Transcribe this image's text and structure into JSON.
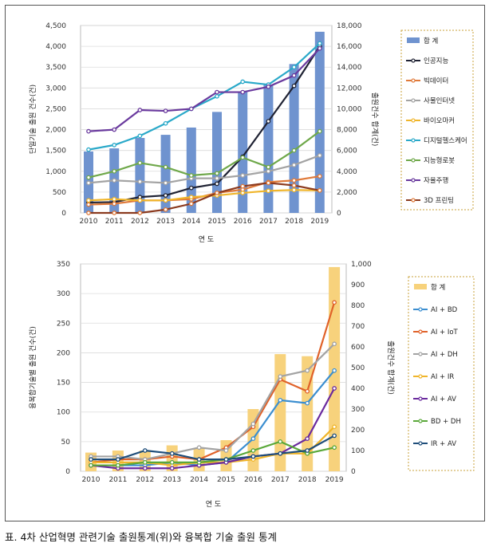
{
  "caption": "표. 4차 산업혁명 관련기술 출원통계(위)와 융복합 기술 출원 통계",
  "chart_data": [
    {
      "type": "bar",
      "categories": [
        "2010",
        "2011",
        "2012",
        "2013",
        "2014",
        "2015",
        "2016",
        "2017",
        "2018",
        "2019"
      ],
      "xlabel": "연 도",
      "ylabel": "단일기술 출원 건수(건)",
      "y2label": "출원건수 합계(건)",
      "ylim": [
        0,
        4500
      ],
      "y2lim": [
        0,
        18000
      ],
      "yticks": [
        "0",
        "500",
        "1,000",
        "1,500",
        "2,000",
        "2,500",
        "3,000",
        "3,500",
        "4,000",
        "4,500"
      ],
      "y2ticks": [
        "0",
        "2,000",
        "4,000",
        "6,000",
        "8,000",
        "10,000",
        "12,000",
        "14,000",
        "16,000",
        "18,000"
      ],
      "legend_position": "right",
      "colors": {
        "bar": "#6f93cf"
      },
      "bar_series": {
        "name": "합 계",
        "axis": "right",
        "values": [
          5900,
          6200,
          7200,
          7500,
          8200,
          9700,
          11600,
          12300,
          14300,
          17400
        ]
      },
      "series": [
        {
          "name": "인공지능",
          "color": "#1f2233",
          "marker": "#1f2233",
          "values": [
            250,
            260,
            380,
            420,
            600,
            700,
            1350,
            2200,
            3050,
            4000
          ]
        },
        {
          "name": "빅데이터",
          "color": "#e07a3a",
          "marker": "#e07a3a",
          "values": [
            200,
            220,
            300,
            300,
            330,
            480,
            560,
            740,
            780,
            880
          ]
        },
        {
          "name": "사물인터넷",
          "color": "#a3a3a3",
          "marker": "#a3a3a3",
          "values": [
            720,
            780,
            750,
            720,
            830,
            830,
            900,
            1000,
            1150,
            1380
          ]
        },
        {
          "name": "바이오마커",
          "color": "#f0b52a",
          "marker": "#f0b52a",
          "values": [
            300,
            330,
            300,
            300,
            380,
            420,
            480,
            530,
            550,
            540
          ]
        },
        {
          "name": "디지털헬스케어",
          "color": "#2aa9c9",
          "marker": "#2aa9c9",
          "values": [
            1520,
            1630,
            1850,
            2150,
            2500,
            2800,
            3150,
            3080,
            3500,
            4070
          ]
        },
        {
          "name": "지능형로봇",
          "color": "#6fa84a",
          "marker": "#6fa84a",
          "values": [
            850,
            1000,
            1200,
            1100,
            900,
            950,
            1330,
            1100,
            1500,
            1960
          ]
        },
        {
          "name": "자율주행",
          "color": "#6a3a9e",
          "marker": "#6a3a9e",
          "values": [
            1960,
            2000,
            2470,
            2450,
            2500,
            2900,
            2900,
            3030,
            3300,
            3950
          ]
        },
        {
          "name": "3D 프린팅",
          "color": "#8b3a1f",
          "marker": "#e07a3a",
          "values": [
            0,
            0,
            0,
            80,
            220,
            480,
            640,
            720,
            660,
            540
          ]
        }
      ]
    },
    {
      "type": "bar",
      "categories": [
        "2010",
        "2011",
        "2012",
        "2013",
        "2014",
        "2015",
        "2016",
        "2017",
        "2018",
        "2019"
      ],
      "xlabel": "연 도",
      "ylabel": "융복합기술별 출원 건수(건)",
      "y2label": "출원건수 합계(건)",
      "ylim": [
        0,
        350
      ],
      "y2lim": [
        0,
        1000
      ],
      "yticks": [
        "0",
        "50",
        "100",
        "150",
        "200",
        "250",
        "300",
        "350"
      ],
      "y2ticks": [
        "0",
        "100",
        "200",
        "300",
        "400",
        "500",
        "600",
        "700",
        "800",
        "900",
        "1,000"
      ],
      "legend_position": "right",
      "colors": {
        "bar": "#f7d27c"
      },
      "bar_series": {
        "name": "합 계",
        "axis": "right",
        "values": [
          90,
          100,
          100,
          125,
          110,
          150,
          300,
          565,
          555,
          985
        ]
      },
      "series": [
        {
          "name": "AI + BD",
          "color": "#3b8ed0",
          "values": [
            10,
            10,
            10,
            15,
            10,
            15,
            55,
            120,
            115,
            170
          ]
        },
        {
          "name": "AI + IoT",
          "color": "#e0622a",
          "values": [
            15,
            20,
            20,
            25,
            20,
            40,
            75,
            155,
            135,
            285
          ]
        },
        {
          "name": "AI + DH",
          "color": "#a3a3a3",
          "values": [
            25,
            25,
            20,
            30,
            40,
            35,
            80,
            160,
            170,
            215
          ]
        },
        {
          "name": "AI + IR",
          "color": "#f0b52a",
          "values": [
            15,
            15,
            15,
            10,
            15,
            15,
            20,
            30,
            30,
            75
          ]
        },
        {
          "name": "AI + AV",
          "color": "#6a2a9e",
          "values": [
            10,
            5,
            5,
            5,
            10,
            15,
            25,
            30,
            55,
            140
          ]
        },
        {
          "name": "BD + DH",
          "color": "#5aa83a",
          "values": [
            10,
            10,
            15,
            15,
            15,
            20,
            35,
            50,
            30,
            40
          ]
        },
        {
          "name": "IR + AV",
          "color": "#1f4e7a",
          "values": [
            20,
            20,
            35,
            30,
            20,
            20,
            25,
            30,
            35,
            60
          ]
        }
      ]
    }
  ]
}
